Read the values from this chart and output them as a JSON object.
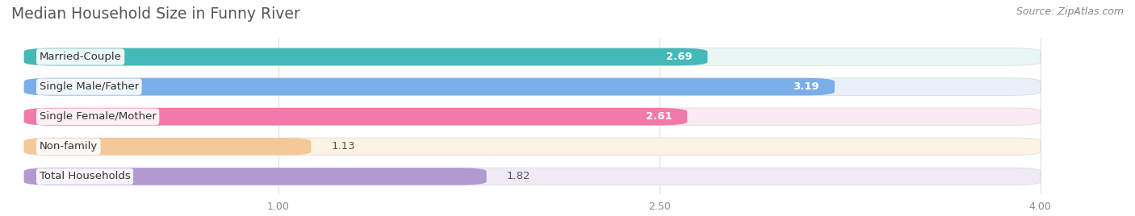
{
  "title": "Median Household Size in Funny River",
  "source": "Source: ZipAtlas.com",
  "categories": [
    "Married-Couple",
    "Single Male/Father",
    "Single Female/Mother",
    "Non-family",
    "Total Households"
  ],
  "values": [
    2.69,
    3.19,
    2.61,
    1.13,
    1.82
  ],
  "bar_colors": [
    "#45b8b8",
    "#7aaee8",
    "#f07aaa",
    "#f5c898",
    "#b09ad0"
  ],
  "bg_colors": [
    "#e8f6f6",
    "#eaf0fa",
    "#fceaf2",
    "#fdf3e3",
    "#eeebf7"
  ],
  "xmin": 0.0,
  "xmax": 4.0,
  "xlim_left": -0.05,
  "xlim_right": 4.35,
  "xticks": [
    1.0,
    2.5,
    4.0
  ],
  "bar_height": 0.58,
  "title_color": "#555555",
  "title_fontsize": 13.5,
  "label_fontsize": 9.5,
  "value_fontsize": 9.5,
  "source_fontsize": 9,
  "source_color": "#888888",
  "bg_color": "#ffffff",
  "grid_color": "#dddddd",
  "rounding": 0.12
}
